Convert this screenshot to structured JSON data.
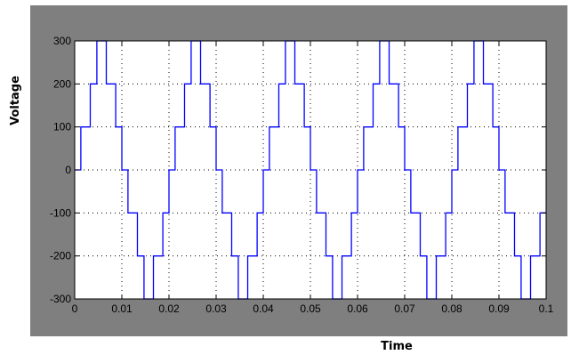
{
  "chart_data": {
    "type": "line",
    "title": "",
    "xlabel": "Time",
    "ylabel": "Voltage",
    "xlim": [
      0,
      0.1
    ],
    "ylim": [
      -300,
      300
    ],
    "grid": true,
    "x_ticks": [
      "0",
      "0.01",
      "0.02",
      "0.03",
      "0.04",
      "0.05",
      "0.06",
      "0.07",
      "0.08",
      "0.09",
      "0.1"
    ],
    "y_ticks": [
      "300",
      "200",
      "100",
      "0",
      "-100",
      "-200",
      "-300"
    ],
    "colors": {
      "line": "#0000ff",
      "frame": "#7f7f7f",
      "plot_bg": "#ffffff"
    },
    "series": [
      {
        "x": [
          0,
          0.001,
          0.001,
          0.0013,
          0.0013,
          0.0033,
          0.0033,
          0.0047,
          0.0047,
          0.0067,
          0.0067,
          0.0087,
          0.0087,
          0.01,
          0.01,
          0.0113,
          0.0113,
          0.0133,
          0.0133,
          0.0147,
          0.0147,
          0.0167,
          0.0167,
          0.0187,
          0.0187,
          0.02,
          0.02,
          0.0213,
          0.0213,
          0.0233,
          0.0233,
          0.0247,
          0.0247,
          0.0267,
          0.0267,
          0.0287,
          0.0287,
          0.03,
          0.03,
          0.0313,
          0.0313,
          0.0333,
          0.0333,
          0.0347,
          0.0347,
          0.0367,
          0.0367,
          0.0387,
          0.0387,
          0.04,
          0.04,
          0.0413,
          0.0413,
          0.0433,
          0.0433,
          0.0447,
          0.0447,
          0.0467,
          0.0467,
          0.0487,
          0.0487,
          0.05,
          0.05,
          0.0513,
          0.0513,
          0.0533,
          0.0533,
          0.0547,
          0.0547,
          0.0567,
          0.0567,
          0.0587,
          0.0587,
          0.06,
          0.06,
          0.0613,
          0.0613,
          0.0633,
          0.0633,
          0.0647,
          0.0647,
          0.0667,
          0.0667,
          0.0687,
          0.0687,
          0.07,
          0.07,
          0.0713,
          0.0713,
          0.0733,
          0.0733,
          0.0747,
          0.0747,
          0.0767,
          0.0767,
          0.0787,
          0.0787,
          0.08,
          0.08,
          0.0813,
          0.0813,
          0.0833,
          0.0833,
          0.0847,
          0.0847,
          0.0867,
          0.0867,
          0.0887,
          0.0887,
          0.09,
          0.09,
          0.0913,
          0.0913,
          0.0933,
          0.0933,
          0.0947,
          0.0947,
          0.0967,
          0.0967,
          0.0987,
          0.0987,
          0.1
        ],
        "y": [
          0,
          0,
          0,
          0,
          100,
          100,
          200,
          200,
          300,
          300,
          200,
          200,
          100,
          100,
          0,
          0,
          -100,
          -100,
          -200,
          -200,
          -300,
          -300,
          -200,
          -200,
          -100,
          -100,
          0,
          0,
          100,
          100,
          200,
          200,
          300,
          300,
          200,
          200,
          100,
          100,
          0,
          0,
          -100,
          -100,
          -200,
          -200,
          -300,
          -300,
          -200,
          -200,
          -100,
          -100,
          0,
          0,
          100,
          100,
          200,
          200,
          300,
          300,
          200,
          200,
          100,
          100,
          0,
          0,
          -100,
          -100,
          -200,
          -200,
          -300,
          -300,
          -200,
          -200,
          -100,
          -100,
          0,
          0,
          100,
          100,
          200,
          200,
          300,
          300,
          200,
          200,
          100,
          100,
          0,
          0,
          -100,
          -100,
          -200,
          -200,
          -300,
          -300,
          -200,
          -200,
          -100,
          -100,
          0,
          0,
          100,
          100,
          200,
          200,
          300,
          300,
          200,
          200,
          100,
          100,
          0,
          0,
          -100,
          -100,
          -200,
          -200,
          -300,
          -300,
          -200,
          -200,
          -100,
          -100
        ]
      }
    ]
  }
}
